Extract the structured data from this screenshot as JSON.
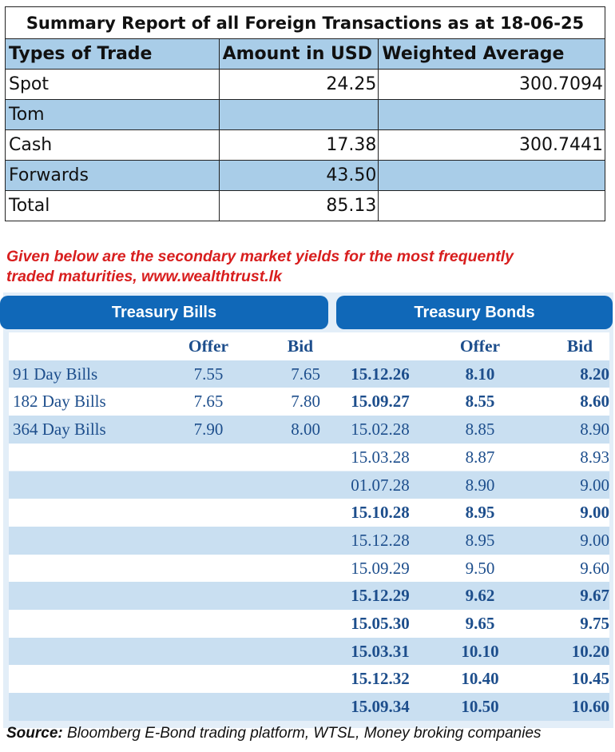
{
  "summary": {
    "title": "Summary Report of all Foreign Transactions as at 18-06-25",
    "headers": [
      "Types of Trade",
      "Amount in USD",
      "Weighted Average"
    ],
    "rows": [
      {
        "type": "Spot",
        "amount": "24.25",
        "avg": "300.7094"
      },
      {
        "type": "Tom",
        "amount": "",
        "avg": ""
      },
      {
        "type": "Cash",
        "amount": "17.38",
        "avg": "300.7441"
      },
      {
        "type": "Forwards",
        "amount": "43.50",
        "avg": ""
      },
      {
        "type": "Total",
        "amount": "85.13",
        "avg": ""
      }
    ]
  },
  "note": {
    "line1": "Given below are the secondary market yields for the most frequently",
    "line2": "traded maturities, www.wealthtrust.lk"
  },
  "bills": {
    "title": "Treasury Bills",
    "offer_label": "Offer",
    "bid_label": "Bid",
    "rows": [
      {
        "name": "91 Day Bills",
        "offer": "7.55",
        "bid": "7.65"
      },
      {
        "name": "182 Day Bills",
        "offer": "7.65",
        "bid": "7.80"
      },
      {
        "name": "364 Day Bills",
        "offer": "7.90",
        "bid": "8.00"
      }
    ]
  },
  "bonds": {
    "title": "Treasury Bonds",
    "offer_label": "Offer",
    "bid_label": "Bid",
    "rows": [
      {
        "maturity": "15.12.26",
        "offer": "8.10",
        "bid": "8.20"
      },
      {
        "maturity": "15.09.27",
        "offer": "8.55",
        "bid": "8.60"
      },
      {
        "maturity": "15.02.28",
        "offer": "8.85",
        "bid": "8.90"
      },
      {
        "maturity": "15.03.28",
        "offer": "8.87",
        "bid": "8.93"
      },
      {
        "maturity": "01.07.28",
        "offer": "8.90",
        "bid": "9.00"
      },
      {
        "maturity": "15.10.28",
        "offer": "8.95",
        "bid": "9.00"
      },
      {
        "maturity": "15.12.28",
        "offer": "8.95",
        "bid": "9.00"
      },
      {
        "maturity": "15.09.29",
        "offer": "9.50",
        "bid": "9.60"
      },
      {
        "maturity": "15.12.29",
        "offer": "9.62",
        "bid": "9.67"
      },
      {
        "maturity": "15.05.30",
        "offer": "9.65",
        "bid": "9.75"
      },
      {
        "maturity": "15.03.31",
        "offer": "10.10",
        "bid": "10.20"
      },
      {
        "maturity": "15.12.32",
        "offer": "10.40",
        "bid": "10.45"
      },
      {
        "maturity": "15.09.34",
        "offer": "10.50",
        "bid": "10.60"
      }
    ]
  },
  "source": {
    "label": "Source:",
    "text": " Bloomberg E-Bond trading platform, WTSL, Money broking companies"
  }
}
